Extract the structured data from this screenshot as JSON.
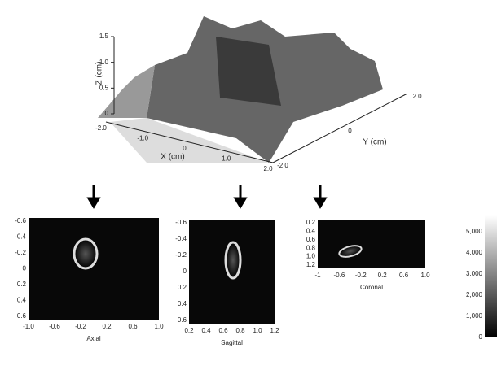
{
  "surface": {
    "z_label": "Z (cm)",
    "x_label": "X (cm)",
    "y_label": "Y (cm)",
    "z_ticks": [
      "1.5",
      "1.0",
      "0.5",
      "0"
    ],
    "x_ticks": [
      "-2.0",
      "-1.0",
      "0",
      "1.0",
      "2.0"
    ],
    "y_ticks": [
      "2.0",
      "0",
      "-2.0"
    ]
  },
  "panels": [
    {
      "label": "Axial",
      "x_ticks": [
        "-1.0",
        "-0.6",
        "-0.2",
        "0.2",
        "0.6",
        "1.0"
      ],
      "y_ticks": [
        "-0.6",
        "-0.4",
        "-0.2",
        "0",
        "0.2",
        "0.4",
        "0.6"
      ]
    },
    {
      "label": "Sagittal",
      "x_ticks": [
        "0.2",
        "0.4",
        "0.6",
        "0.8",
        "1.0",
        "1.2"
      ],
      "y_ticks": [
        "-0.6",
        "-0.4",
        "-0.2",
        "0",
        "0.2",
        "0.4",
        "0.6"
      ]
    },
    {
      "label": "Coronal",
      "x_ticks": [
        "-1",
        "-0.6",
        "-0.2",
        "0.2",
        "0.6",
        "1.0"
      ],
      "y_ticks": [
        "0.2",
        "0.4",
        "0.6",
        "0.8",
        "1.0",
        "1.2"
      ]
    }
  ],
  "colorbar": {
    "ticks": [
      "5,000",
      "4,000",
      "3,000",
      "2,000",
      "1,000",
      "0"
    ]
  }
}
